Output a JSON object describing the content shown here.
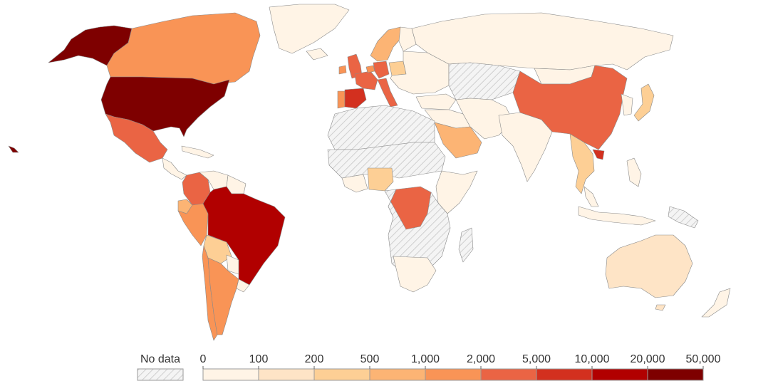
{
  "legend": {
    "no_data_label": "No data",
    "ticks": [
      "0",
      "100",
      "200",
      "500",
      "1,000",
      "2,000",
      "5,000",
      "10,000",
      "20,000",
      "50,000"
    ],
    "colors": [
      "#fff4e6",
      "#fee4c6",
      "#fdcf95",
      "#fcb474",
      "#f99456",
      "#ea6444",
      "#d3301f",
      "#b10000",
      "#7e0000"
    ],
    "no_data_color": "#e2e2e2"
  },
  "regions": [
    {
      "name": "alaska",
      "bin": 8
    },
    {
      "name": "canada",
      "bin": 4
    },
    {
      "name": "usa",
      "bin": 8
    },
    {
      "name": "mexico",
      "bin": 5
    },
    {
      "name": "central-america",
      "bin": 0
    },
    {
      "name": "colombia",
      "bin": 5
    },
    {
      "name": "venezuela",
      "bin": 0
    },
    {
      "name": "guyanas",
      "bin": 0
    },
    {
      "name": "ecuador",
      "bin": 3
    },
    {
      "name": "peru",
      "bin": 4
    },
    {
      "name": "brazil",
      "bin": 7
    },
    {
      "name": "bolivia",
      "bin": 2
    },
    {
      "name": "paraguay",
      "bin": 0
    },
    {
      "name": "chile",
      "bin": 4
    },
    {
      "name": "argentina",
      "bin": 4
    },
    {
      "name": "uruguay",
      "bin": 0
    },
    {
      "name": "greenland",
      "bin": 0
    },
    {
      "name": "iceland",
      "bin": 0
    },
    {
      "name": "uk",
      "bin": 5
    },
    {
      "name": "ireland",
      "bin": 4
    },
    {
      "name": "spain",
      "bin": 6
    },
    {
      "name": "portugal",
      "bin": 4
    },
    {
      "name": "france",
      "bin": 5
    },
    {
      "name": "benelux",
      "bin": 4
    },
    {
      "name": "germany",
      "bin": 5
    },
    {
      "name": "italy",
      "bin": 5
    },
    {
      "name": "scandinavia",
      "bin": 3
    },
    {
      "name": "finland",
      "bin": 0
    },
    {
      "name": "poland",
      "bin": 2
    },
    {
      "name": "eastern-europe",
      "bin": 0
    },
    {
      "name": "russia",
      "bin": 0
    },
    {
      "name": "turkey",
      "bin": 0
    },
    {
      "name": "middle-east",
      "bin": 0
    },
    {
      "name": "saudi-arabia",
      "bin": 3
    },
    {
      "name": "north-africa",
      "bin": -1
    },
    {
      "name": "sahel",
      "bin": -1
    },
    {
      "name": "nigeria",
      "bin": 2
    },
    {
      "name": "west-africa",
      "bin": 0
    },
    {
      "name": "dr-congo",
      "bin": 5
    },
    {
      "name": "east-africa",
      "bin": 0
    },
    {
      "name": "central-africa",
      "bin": -1
    },
    {
      "name": "southern-africa",
      "bin": 0
    },
    {
      "name": "madagascar",
      "bin": -1
    },
    {
      "name": "central-asia",
      "bin": -1
    },
    {
      "name": "iran-afghanistan",
      "bin": 0
    },
    {
      "name": "india",
      "bin": 0
    },
    {
      "name": "china",
      "bin": 5
    },
    {
      "name": "mongolia",
      "bin": 0
    },
    {
      "name": "korea",
      "bin": 0
    },
    {
      "name": "japan",
      "bin": 2
    },
    {
      "name": "southeast-asia",
      "bin": 2
    },
    {
      "name": "vietnam",
      "bin": 6
    },
    {
      "name": "malaysia",
      "bin": 0
    },
    {
      "name": "indonesia",
      "bin": 0
    },
    {
      "name": "philippines",
      "bin": 0
    },
    {
      "name": "new-guinea",
      "bin": -1
    },
    {
      "name": "australia",
      "bin": 1
    },
    {
      "name": "tasmania",
      "bin": 1
    },
    {
      "name": "new-zealand",
      "bin": 0
    },
    {
      "name": "hawaii",
      "bin": 8
    },
    {
      "name": "caribbean",
      "bin": 0
    }
  ]
}
